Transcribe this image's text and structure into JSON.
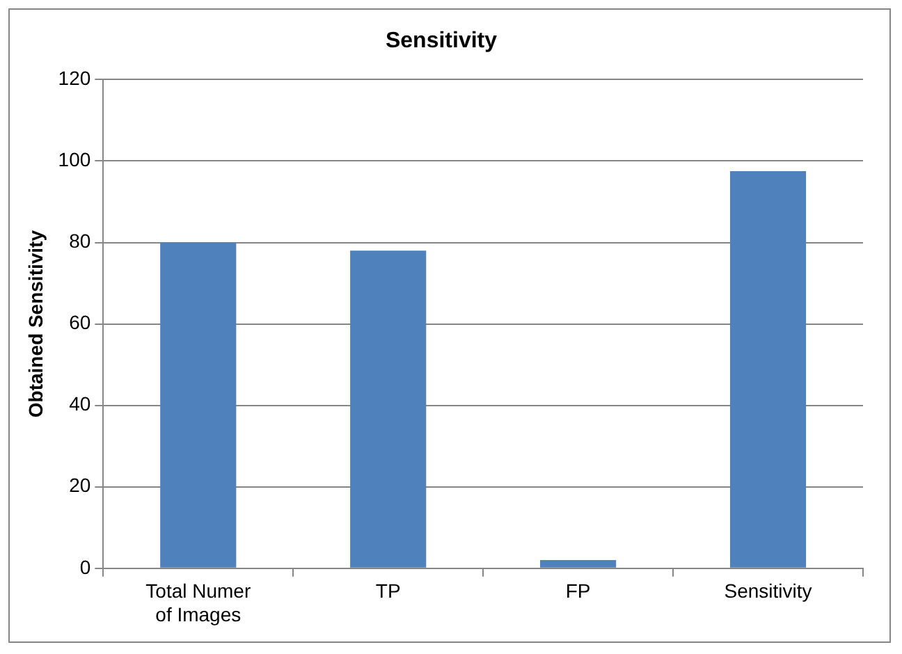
{
  "chart_data": {
    "type": "bar",
    "title": "Sensitivity",
    "ylabel": "Obtained Sensitivity",
    "categories": [
      "Total Numer of Images",
      "TP",
      "FP",
      "Sensitivity"
    ],
    "values": [
      80,
      78,
      2,
      97.5
    ],
    "color": "#4f81bd",
    "ylim": [
      0,
      120
    ],
    "yticks": [
      0,
      20,
      40,
      60,
      80,
      100,
      120
    ],
    "grid": "y"
  }
}
